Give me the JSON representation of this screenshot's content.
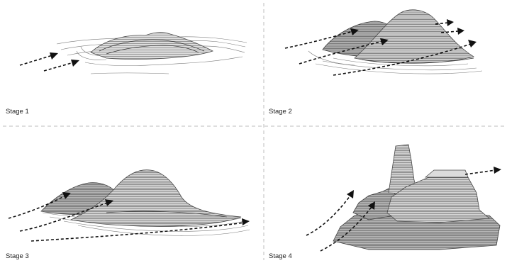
{
  "panels": [
    {
      "label": "Stage 1"
    },
    {
      "label": "Stage 2"
    },
    {
      "label": "Stage 3"
    },
    {
      "label": "Stage 4"
    }
  ]
}
